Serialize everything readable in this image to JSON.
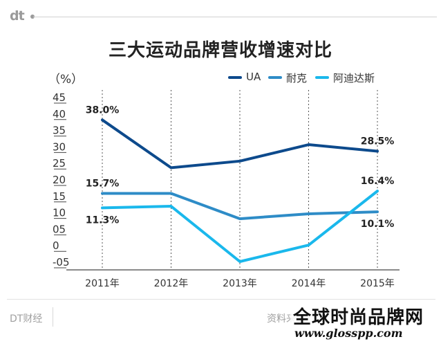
{
  "header": {
    "logo": "dt"
  },
  "chart_data": {
    "type": "line",
    "title": "三大运动品牌营收增速对比",
    "ylabel": "（%）",
    "xlabel": "",
    "categories": [
      "2011年",
      "2012年",
      "2013年",
      "2014年",
      "2015年"
    ],
    "yticks": [
      "45",
      "40",
      "35",
      "30",
      "25",
      "20",
      "15",
      "10",
      "05",
      "0",
      "-05"
    ],
    "ylim": [
      -5,
      45
    ],
    "grid": "vertical-dashed",
    "legend_position": "top-right",
    "series": [
      {
        "name": "UA",
        "color": "#0d4a8c",
        "values": [
          38.0,
          23.5,
          25.5,
          30.5,
          28.5
        ]
      },
      {
        "name": "耐克",
        "color": "#2e8cc7",
        "values": [
          15.7,
          15.7,
          8.0,
          9.5,
          10.1
        ]
      },
      {
        "name": "阿迪达斯",
        "color": "#1ab8ec",
        "values": [
          11.3,
          11.8,
          -5.0,
          0.0,
          16.4
        ]
      }
    ],
    "annotations": [
      {
        "text": "38.0%",
        "series": 0,
        "index": 0,
        "pos": "above"
      },
      {
        "text": "28.5%",
        "series": 0,
        "index": 4,
        "pos": "above"
      },
      {
        "text": "15.7%",
        "series": 1,
        "index": 0,
        "pos": "above"
      },
      {
        "text": "11.3%",
        "series": 2,
        "index": 0,
        "pos": "below"
      },
      {
        "text": "16.4%",
        "series": 2,
        "index": 4,
        "pos": "above"
      },
      {
        "text": "10.1%",
        "series": 1,
        "index": 4,
        "pos": "below"
      }
    ]
  },
  "footer": {
    "brand": "DT财经",
    "source": "资料来"
  },
  "watermark": {
    "name": "全球时尚品牌网",
    "url": "www.glosspp.com"
  }
}
